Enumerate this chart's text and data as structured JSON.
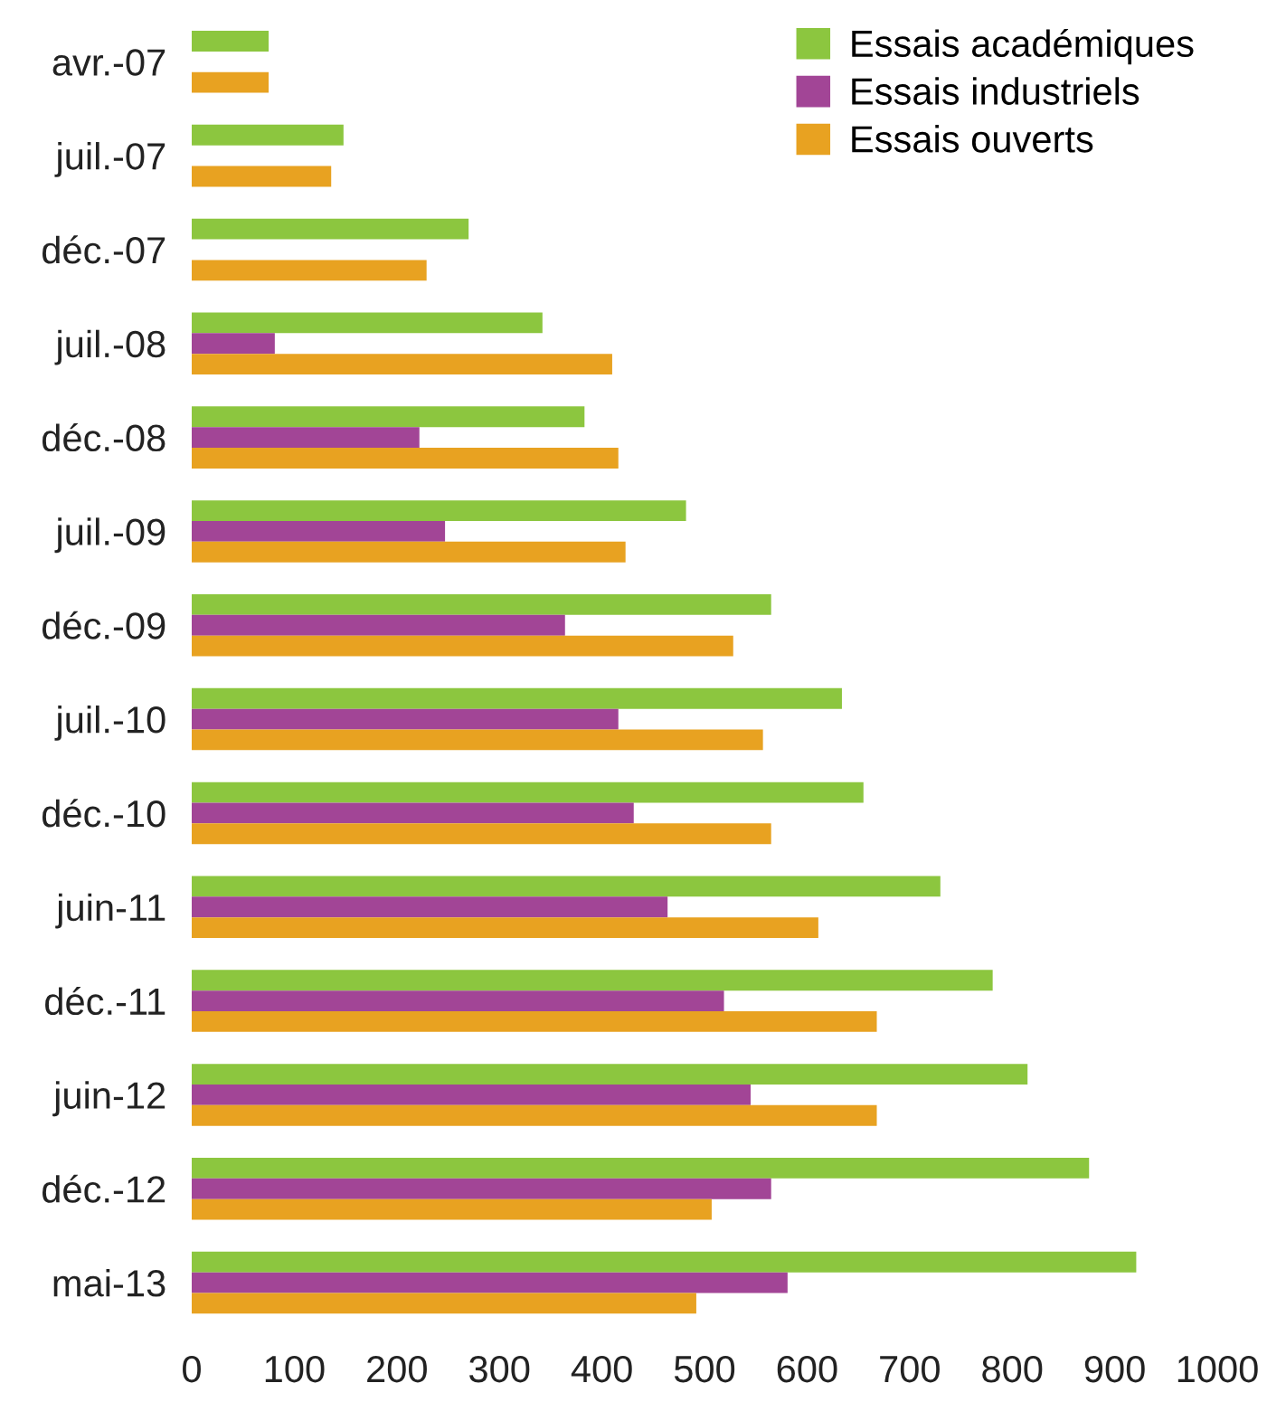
{
  "chart_data": {
    "type": "bar",
    "orientation": "horizontal",
    "categories": [
      "avr.-07",
      "juil.-07",
      "déc.-07",
      "juil.-08",
      "déc.-08",
      "juil.-09",
      "déc.-09",
      "juil.-10",
      "déc.-10",
      "juin-11",
      "déc.-11",
      "juin-12",
      "déc.-12",
      "mai-13"
    ],
    "series": [
      {
        "name": "Essais académiques",
        "color": "#8cc63f",
        "values": [
          75,
          148,
          270,
          342,
          383,
          482,
          565,
          634,
          655,
          730,
          781,
          815,
          875,
          921
        ]
      },
      {
        "name": "Essais industriels",
        "color": "#a24596",
        "values": [
          null,
          null,
          null,
          81,
          222,
          247,
          364,
          416,
          431,
          464,
          519,
          545,
          565,
          581
        ]
      },
      {
        "name": "Essais ouverts",
        "color": "#e8a221",
        "values": [
          75,
          136,
          229,
          410,
          416,
          423,
          528,
          557,
          565,
          611,
          668,
          668,
          507,
          492
        ]
      }
    ],
    "xlim": [
      0,
      1000
    ],
    "xticks": [
      0,
      100,
      200,
      300,
      400,
      500,
      600,
      700,
      800,
      900,
      1000
    ],
    "grid": false,
    "legend": "top right"
  }
}
